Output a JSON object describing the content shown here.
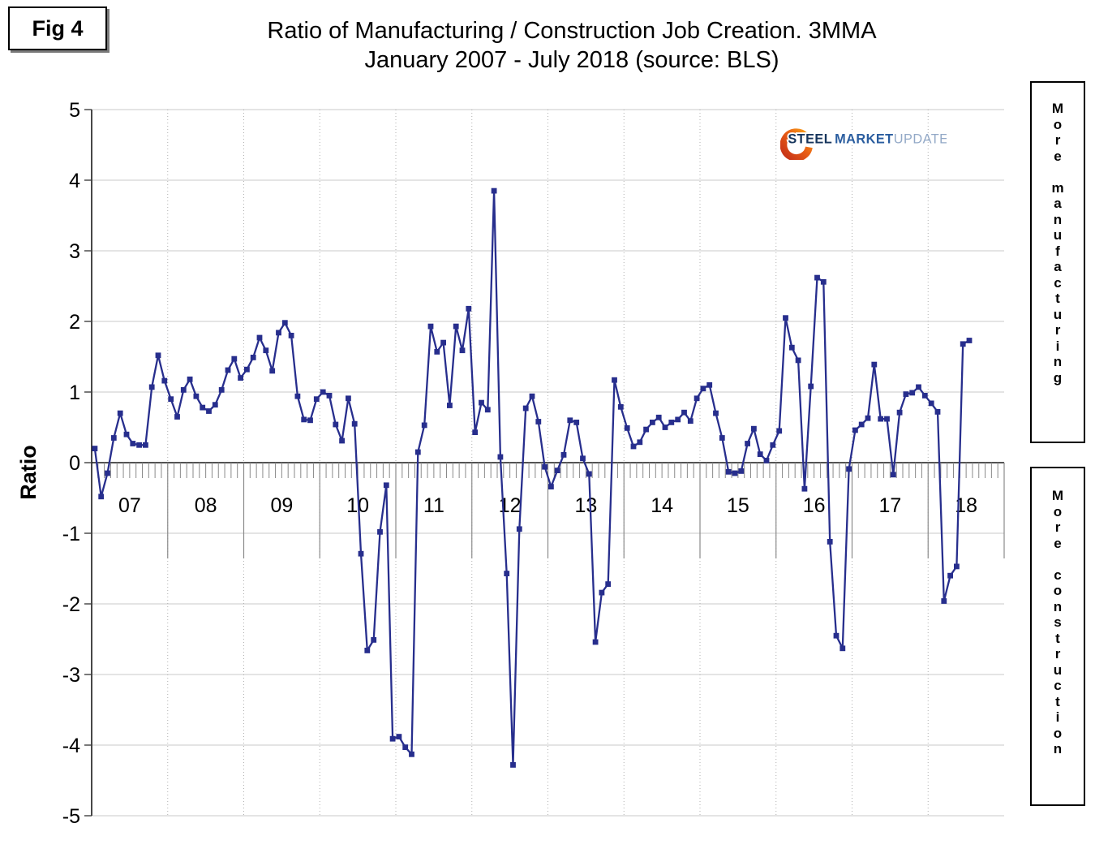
{
  "figure": {
    "badge": "Fig 4",
    "title_line1": "Ratio of Manufacturing / Construction Job Creation. 3MMA",
    "title_line2": "January 2007 - July 2018 (source: BLS)"
  },
  "logo": {
    "word1": "STEEL",
    "word2": "MARKET",
    "word3": "UPDATE"
  },
  "annotations": {
    "right_top": "More manufacturing",
    "right_bottom": "More construction"
  },
  "chart_data": {
    "type": "line",
    "title": "Ratio of Manufacturing / Construction Job Creation. 3MMA",
    "subtitle": "January 2007 - July 2018 (source: BLS)",
    "ylabel": "Ratio",
    "ylim": [
      -5,
      5
    ],
    "y_ticks": [
      5,
      4,
      3,
      2,
      1,
      0,
      -1,
      -2,
      -3,
      -4,
      -5
    ],
    "x_year_labels": [
      "07",
      "08",
      "09",
      "10",
      "11",
      "12",
      "13",
      "14",
      "15",
      "16",
      "17",
      "18"
    ],
    "x_range": "January 2007 - July 2018",
    "grid": true,
    "legend": "none",
    "line_color": "#272e8d",
    "marker": "square",
    "series": [
      {
        "name": "Manufacturing / Construction job creation ratio (3MMA)",
        "start_month": "2007-01",
        "values": [
          0.2,
          -0.48,
          -0.15,
          0.35,
          0.7,
          0.4,
          0.27,
          0.25,
          0.25,
          1.07,
          1.52,
          1.16,
          0.9,
          0.65,
          1.03,
          1.18,
          0.94,
          0.78,
          0.73,
          0.82,
          1.03,
          1.31,
          1.47,
          1.2,
          1.32,
          1.49,
          1.77,
          1.59,
          1.3,
          1.84,
          1.98,
          1.8,
          0.94,
          0.61,
          0.6,
          0.9,
          1.0,
          0.95,
          0.54,
          0.31,
          0.91,
          0.55,
          -1.29,
          -2.66,
          -2.51,
          -0.98,
          -0.32,
          -3.91,
          -3.88,
          -4.03,
          -4.13,
          0.15,
          0.53,
          1.93,
          1.57,
          1.7,
          0.81,
          1.93,
          1.59,
          2.18,
          0.43,
          0.85,
          0.75,
          3.85,
          0.08,
          -1.57,
          -4.28,
          -0.94,
          0.77,
          0.94,
          0.58,
          -0.06,
          -0.34,
          -0.11,
          0.11,
          0.6,
          0.57,
          0.06,
          -0.16,
          -2.54,
          -1.84,
          -1.72,
          1.17,
          0.79,
          0.49,
          0.23,
          0.29,
          0.47,
          0.57,
          0.64,
          0.5,
          0.57,
          0.61,
          0.71,
          0.59,
          0.91,
          1.05,
          1.1,
          0.7,
          0.35,
          -0.13,
          -0.15,
          -0.12,
          0.27,
          0.48,
          0.12,
          0.03,
          0.25,
          0.45,
          2.05,
          1.63,
          1.45,
          -0.37,
          1.08,
          2.62,
          2.56,
          -1.12,
          -2.45,
          -2.63,
          -0.09,
          0.46,
          0.54,
          0.63,
          1.39,
          0.62,
          0.62,
          -0.17,
          0.71,
          0.97,
          0.99,
          1.07,
          0.95,
          0.84,
          0.72,
          -1.96,
          -1.6,
          -1.47,
          1.68,
          1.73
        ]
      }
    ]
  }
}
